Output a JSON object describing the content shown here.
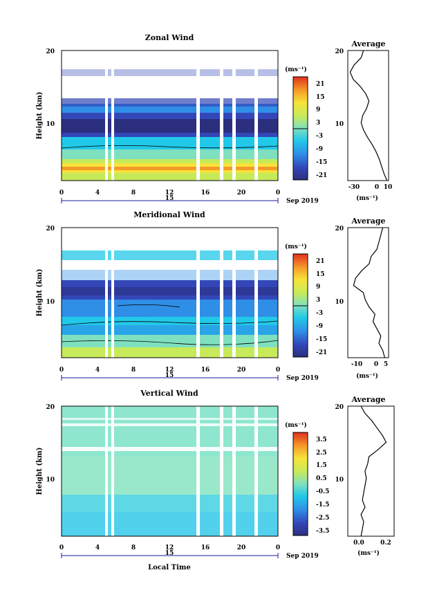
{
  "chart_data": [
    {
      "type": "heatmap",
      "title": "Zonal Wind",
      "ylabel": "Height (km)",
      "ylim": [
        2,
        20
      ],
      "yticks": [
        10,
        20
      ],
      "x_ticks": [
        "0",
        "4",
        "8",
        "12",
        "16",
        "20",
        "0"
      ],
      "date_label": "15",
      "month_label": "Sep 2019",
      "colorbar": {
        "unit": "(ms⁻¹)",
        "ticks": [
          "21",
          "15",
          "9",
          "3",
          "-3",
          "-9",
          "-15",
          "-21"
        ],
        "levels": [
          -24,
          24
        ]
      },
      "profile": {
        "title": "Average",
        "xlabel": "(ms⁻¹)",
        "x_ticks": [
          "-30",
          "0",
          "10"
        ],
        "xlim": [
          -40,
          12
        ],
        "height": [
          2,
          3,
          4,
          5,
          6,
          7,
          8,
          9,
          10,
          11,
          12,
          13,
          14,
          15,
          16,
          17,
          18,
          19,
          20
        ],
        "values": [
          10,
          6,
          3,
          0,
          -4,
          -9,
          -15,
          -20,
          -23,
          -21,
          -16,
          -13,
          -17,
          -24,
          -33,
          -37,
          -32,
          -23,
          -20
        ]
      }
    },
    {
      "type": "heatmap",
      "title": "Meridional Wind",
      "ylabel": "Height (km)",
      "ylim": [
        2,
        20
      ],
      "yticks": [
        10,
        20
      ],
      "x_ticks": [
        "0",
        "4",
        "8",
        "12",
        "16",
        "20",
        "0"
      ],
      "date_label": "15",
      "month_label": "Sep 2019",
      "colorbar": {
        "unit": "(ms⁻¹)",
        "ticks": [
          "21",
          "15",
          "9",
          "3",
          "-3",
          "-9",
          "-15",
          "-21"
        ],
        "levels": [
          -24,
          24
        ]
      },
      "profile": {
        "title": "Average",
        "xlabel": "(ms⁻¹)",
        "x_ticks": [
          "-10",
          "0",
          "5"
        ],
        "xlim": [
          -15,
          6
        ],
        "height": [
          2,
          3,
          4,
          5,
          6,
          7,
          8,
          9,
          10,
          11,
          12,
          13,
          14,
          15,
          16,
          17,
          18,
          19,
          20
        ],
        "values": [
          4,
          3,
          1,
          2,
          0,
          -2,
          -1,
          -4,
          -6,
          -7,
          -12,
          -11,
          -8,
          -4,
          -3,
          0,
          1,
          2,
          3
        ]
      }
    },
    {
      "type": "heatmap",
      "title": "Vertical Wind",
      "ylabel": "Height (km)",
      "ylim": [
        2,
        20
      ],
      "yticks": [
        10,
        20
      ],
      "x_ticks": [
        "0",
        "4",
        "8",
        "12",
        "16",
        "20",
        "0"
      ],
      "date_label": "15",
      "month_label": "Sep 2019",
      "xlabel": "Local Time",
      "colorbar": {
        "unit": "(ms⁻¹)",
        "ticks": [
          "3.5",
          "2.5",
          "1.5",
          "0.5",
          "-0.5",
          "-1.5",
          "-2.5",
          "-3.5"
        ],
        "levels": [
          -4,
          4
        ]
      },
      "profile": {
        "title": "Average",
        "xlabel": "(ms⁻¹)",
        "x_ticks": [
          "0.0",
          "0.2"
        ],
        "xlim": [
          -0.1,
          0.25
        ],
        "height": [
          2,
          3,
          4,
          5,
          6,
          7,
          8,
          9,
          10,
          11,
          12,
          13,
          14,
          15,
          16,
          17,
          18,
          19,
          20
        ],
        "values": [
          0.0,
          0.01,
          0.02,
          0.0,
          0.03,
          0.01,
          0.02,
          0.03,
          0.04,
          0.03,
          0.05,
          0.06,
          0.13,
          0.19,
          0.16,
          0.12,
          0.08,
          0.03,
          0.0
        ]
      }
    }
  ]
}
